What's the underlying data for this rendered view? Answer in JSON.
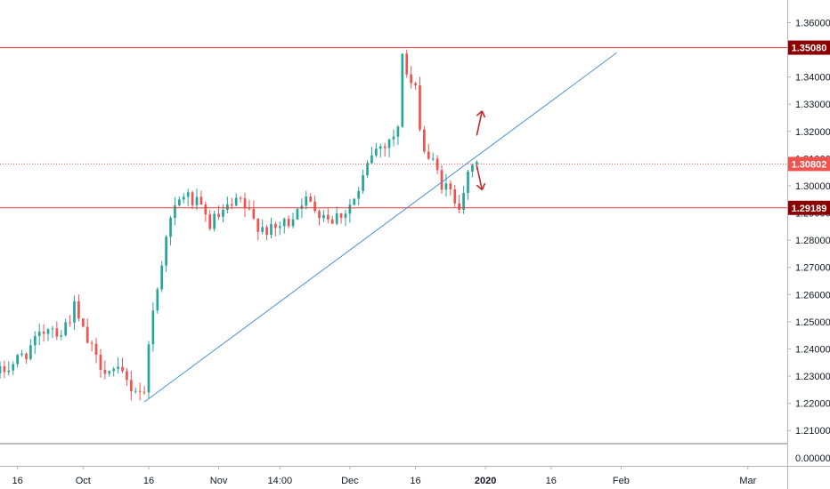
{
  "chart_data": {
    "type": "candlestick",
    "title": "",
    "xlabel": "",
    "ylabel": "",
    "ylim": [
      1.2055,
      1.3657
    ],
    "y_ticks": [
      "1.36000",
      "1.35000",
      "1.34000",
      "1.33000",
      "1.32000",
      "1.31000",
      "1.30000",
      "1.29000",
      "1.28000",
      "1.27000",
      "1.26000",
      "1.25000",
      "1.24000",
      "1.23000",
      "1.22000",
      "1.21000"
    ],
    "y_tick_values": [
      1.36,
      1.35,
      1.34,
      1.33,
      1.32,
      1.31,
      1.3,
      1.29,
      1.28,
      1.27,
      1.26,
      1.25,
      1.24,
      1.23,
      1.22,
      1.21
    ],
    "indicator_pane_tick": "0.00000",
    "x_ticks": [
      {
        "label": "16",
        "date": "2019-09-16",
        "bold": false
      },
      {
        "label": "Oct",
        "date": "2019-10-01",
        "bold": false
      },
      {
        "label": "16",
        "date": "2019-10-16",
        "bold": false
      },
      {
        "label": "Nov",
        "date": "2019-11-01",
        "bold": false
      },
      {
        "label": "14:00",
        "date": "2019-11-15",
        "bold": false
      },
      {
        "label": "Dec",
        "date": "2019-12-01",
        "bold": false
      },
      {
        "label": "16",
        "date": "2019-12-16",
        "bold": false
      },
      {
        "label": "2020",
        "date": "2020-01-01",
        "bold": true
      },
      {
        "label": "16",
        "date": "2020-01-16",
        "bold": false
      },
      {
        "label": "Feb",
        "date": "2020-02-01",
        "bold": false
      },
      {
        "label": "Mar",
        "date": "2020-03-01",
        "bold": false
      }
    ],
    "x_range": [
      "2019-09-12",
      "2020-03-10"
    ],
    "price_path": [
      [
        "2019-09-12",
        1.231
      ],
      [
        "2019-09-16",
        1.236
      ],
      [
        "2019-09-20",
        1.242
      ],
      [
        "2019-09-23",
        1.249
      ],
      [
        "2019-09-26",
        1.246
      ],
      [
        "2019-09-29",
        1.255
      ],
      [
        "2019-10-01",
        1.246
      ],
      [
        "2019-10-04",
        1.236
      ],
      [
        "2019-10-07",
        1.232
      ],
      [
        "2019-10-10",
        1.23
      ],
      [
        "2019-10-12",
        1.226
      ],
      [
        "2019-10-14",
        1.225
      ],
      [
        "2019-10-15",
        1.223
      ],
      [
        "2019-10-16",
        1.244
      ],
      [
        "2019-10-18",
        1.262
      ],
      [
        "2019-10-20",
        1.283
      ],
      [
        "2019-10-22",
        1.291
      ],
      [
        "2019-10-24",
        1.297
      ],
      [
        "2019-10-27",
        1.293
      ],
      [
        "2019-10-30",
        1.286
      ],
      [
        "2019-11-03",
        1.291
      ],
      [
        "2019-11-06",
        1.294
      ],
      [
        "2019-11-09",
        1.287
      ],
      [
        "2019-11-13",
        1.283
      ],
      [
        "2019-11-17",
        1.287
      ],
      [
        "2019-11-20",
        1.295
      ],
      [
        "2019-11-24",
        1.291
      ],
      [
        "2019-11-27",
        1.288
      ],
      [
        "2019-11-30",
        1.291
      ],
      [
        "2019-12-03",
        1.297
      ],
      [
        "2019-12-06",
        1.312
      ],
      [
        "2019-12-09",
        1.316
      ],
      [
        "2019-12-12",
        1.32
      ],
      [
        "2019-12-13",
        1.35
      ],
      [
        "2019-12-14",
        1.341
      ],
      [
        "2019-12-16",
        1.334
      ],
      [
        "2019-12-18",
        1.313
      ],
      [
        "2019-12-20",
        1.308
      ],
      [
        "2019-12-22",
        1.301
      ],
      [
        "2019-12-24",
        1.297
      ],
      [
        "2019-12-26",
        1.294
      ],
      [
        "2019-12-27",
        1.299
      ],
      [
        "2019-12-29",
        1.306
      ],
      [
        "2019-12-30",
        1.31
      ]
    ],
    "horizontal_levels": [
      {
        "price": 1.3508,
        "label": "1.35080",
        "style": "solid",
        "color": "#e53935",
        "badge_color": "#8b0000"
      },
      {
        "price": 1.30802,
        "label": "1.30802",
        "style": "dotted",
        "color": "#ef5350",
        "badge_color": "#ef5350"
      },
      {
        "price": 1.29189,
        "label": "1.29189",
        "style": "solid",
        "color": "#e53935",
        "badge_color": "#8b0000"
      }
    ],
    "trendline": {
      "start": [
        "2019-10-15",
        1.2205
      ],
      "end": [
        "2020-01-31",
        1.3489
      ],
      "color": "#4a90d9"
    },
    "arrows": [
      {
        "direction": "up",
        "from": [
          "2019-12-30",
          1.3185
        ],
        "to": [
          "2019-12-30",
          1.3275
        ],
        "color": "#c62828"
      },
      {
        "direction": "down",
        "from": [
          "2019-12-30",
          1.3075
        ],
        "to": [
          "2019-12-30",
          1.2985
        ],
        "color": "#c62828"
      }
    ],
    "candle_colors": {
      "up": "#26a69a",
      "down": "#ef5350"
    },
    "grid": false,
    "legend": "none"
  }
}
